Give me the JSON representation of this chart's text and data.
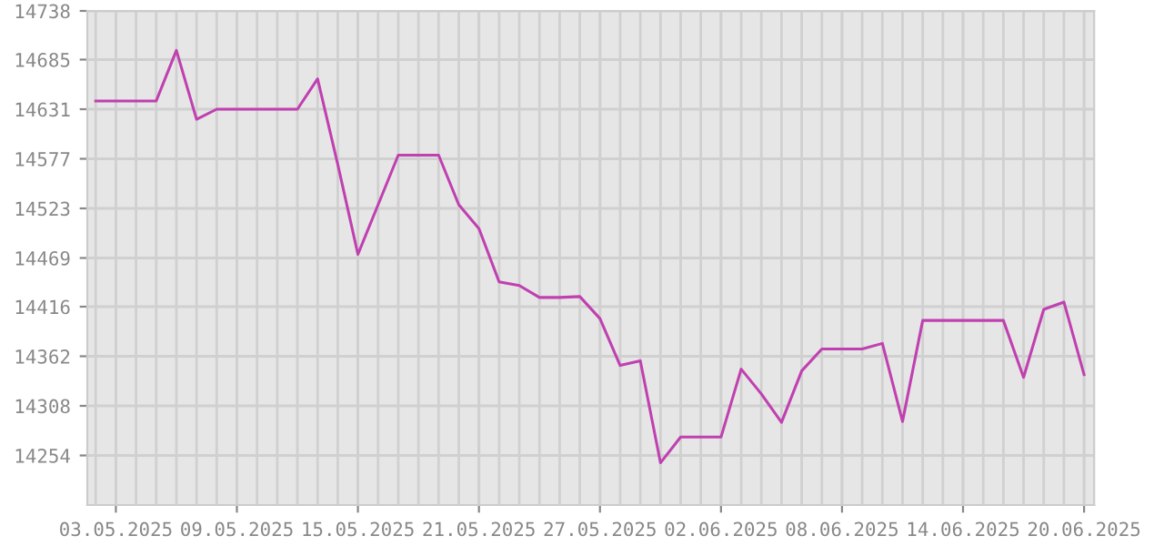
{
  "chart_data": {
    "type": "line",
    "x": [
      "2025-05-02",
      "2025-05-03",
      "2025-05-04",
      "2025-05-05",
      "2025-05-06",
      "2025-05-07",
      "2025-05-08",
      "2025-05-09",
      "2025-05-10",
      "2025-05-11",
      "2025-05-12",
      "2025-05-13",
      "2025-05-14",
      "2025-05-15",
      "2025-05-16",
      "2025-05-17",
      "2025-05-18",
      "2025-05-19",
      "2025-05-20",
      "2025-05-21",
      "2025-05-22",
      "2025-05-23",
      "2025-05-24",
      "2025-05-25",
      "2025-05-26",
      "2025-05-27",
      "2025-05-28",
      "2025-05-29",
      "2025-05-30",
      "2025-05-31",
      "2025-06-01",
      "2025-06-02",
      "2025-06-03",
      "2025-06-04",
      "2025-06-05",
      "2025-06-06",
      "2025-06-07",
      "2025-06-08",
      "2025-06-09",
      "2025-06-10",
      "2025-06-11",
      "2025-06-12",
      "2025-06-13",
      "2025-06-14",
      "2025-06-15",
      "2025-06-16",
      "2025-06-17",
      "2025-06-18",
      "2025-06-19",
      "2025-06-20"
    ],
    "series": [
      {
        "color": "#c040b0",
        "values": [
          14640,
          14640,
          14640,
          14640,
          14695,
          14620,
          14631,
          14631,
          14631,
          14631,
          14631,
          14664,
          14571,
          14473,
          14527,
          14581,
          14581,
          14581,
          14527,
          14501,
          14443,
          14439,
          14426,
          14426,
          14427,
          14403,
          14352,
          14357,
          14246,
          14274,
          14274,
          14274,
          14348,
          14321,
          14290,
          14346,
          14370,
          14370,
          14370,
          14376,
          14291,
          14401,
          14401,
          14401,
          14401,
          14401,
          14339,
          14413,
          14421,
          14342
        ]
      }
    ],
    "xlim": [
      "2025-05-01T14:00",
      "2025-06-20T12:00"
    ],
    "xticks": [
      {
        "value": "2025-05-03",
        "label": "03.05.2025"
      },
      {
        "value": "2025-05-09",
        "label": "09.05.2025"
      },
      {
        "value": "2025-05-15",
        "label": "15.05.2025"
      },
      {
        "value": "2025-05-21",
        "label": "21.05.2025"
      },
      {
        "value": "2025-05-27",
        "label": "27.05.2025"
      },
      {
        "value": "2025-06-02",
        "label": "02.06.2025"
      },
      {
        "value": "2025-06-08",
        "label": "08.06.2025"
      },
      {
        "value": "2025-06-14",
        "label": "14.06.2025"
      },
      {
        "value": "2025-06-20",
        "label": "20.06.2025"
      }
    ],
    "ylim": [
      14200,
      14738
    ],
    "yticks": [
      14254,
      14308,
      14362,
      14416,
      14469,
      14523,
      14577,
      14631,
      14685,
      14738
    ],
    "grid": true,
    "marker": "none",
    "line_style": "solid"
  }
}
